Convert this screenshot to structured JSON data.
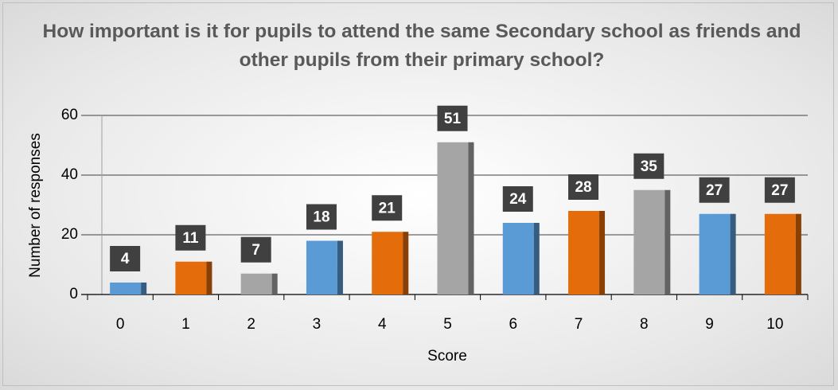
{
  "chart_data": {
    "type": "bar",
    "title": "How important is it for pupils to attend the same Secondary school as friends and other pupils from their primary school?",
    "x_label": "Score",
    "y_label": "Number of responses",
    "categories": [
      "0",
      "1",
      "2",
      "3",
      "4",
      "5",
      "6",
      "7",
      "8",
      "9",
      "10"
    ],
    "values": [
      4,
      11,
      7,
      18,
      21,
      51,
      24,
      28,
      35,
      27,
      27
    ],
    "colors": [
      "#5b9bd5",
      "#e46c0a",
      "#a5a5a5",
      "#5b9bd5",
      "#e46c0a",
      "#a5a5a5",
      "#5b9bd5",
      "#e46c0a",
      "#a5a5a5",
      "#5b9bd5",
      "#e46c0a"
    ],
    "ylim": [
      0,
      60
    ],
    "yticks": [
      0,
      20,
      40,
      60
    ],
    "grid": true
  }
}
